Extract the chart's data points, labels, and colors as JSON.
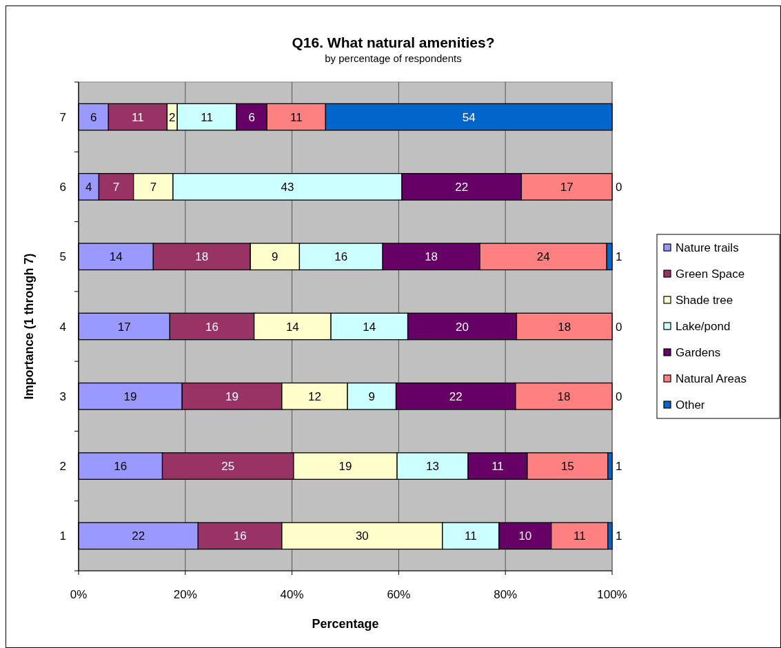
{
  "chart_data": {
    "type": "bar",
    "orientation": "horizontal",
    "stacked": true,
    "title": "Q16. What natural amenities?",
    "subtitle": "by percentage of respondents",
    "xlabel": "Percentage",
    "ylabel": "Importance (1 through 7)",
    "categories": [
      "7",
      "6",
      "5",
      "4",
      "3",
      "2",
      "1"
    ],
    "xlim": [
      0,
      100
    ],
    "xticks": [
      {
        "value": 0,
        "label": "0%"
      },
      {
        "value": 20,
        "label": "20%"
      },
      {
        "value": 40,
        "label": "40%"
      },
      {
        "value": 60,
        "label": "60%"
      },
      {
        "value": 80,
        "label": "80%"
      },
      {
        "value": 100,
        "label": "100%"
      }
    ],
    "grid": "x",
    "legend": "right",
    "series": [
      {
        "name": "Nature trails",
        "color": "#9999ff",
        "values": [
          5.6,
          3.8,
          14.0,
          17.1,
          19.4,
          15.7,
          22.4
        ],
        "value_labels": [
          "6",
          "4",
          "14",
          "17",
          "19",
          "16",
          "22"
        ]
      },
      {
        "name": "Green Space",
        "color": "#993366",
        "values": [
          11.0,
          6.5,
          18.2,
          15.8,
          18.7,
          24.6,
          15.7
        ],
        "value_labels": [
          "11",
          "7",
          "18",
          "16",
          "19",
          "25",
          "16"
        ]
      },
      {
        "name": "Shade tree",
        "color": "#ffffcc",
        "values": [
          1.9,
          7.4,
          9.2,
          14.4,
          12.3,
          19.4,
          30.1
        ],
        "value_labels": [
          "2",
          "7",
          "9",
          "14",
          "12",
          "19",
          "30"
        ]
      },
      {
        "name": "Lake/pond",
        "color": "#ccffff",
        "values": [
          11.1,
          42.9,
          15.6,
          14.4,
          9.1,
          13.3,
          10.6
        ],
        "value_labels": [
          "11",
          "43",
          "16",
          "14",
          "9",
          "13",
          "11"
        ]
      },
      {
        "name": "Gardens",
        "color": "#660066",
        "values": [
          5.7,
          22.4,
          18.2,
          20.4,
          22.4,
          11.1,
          9.8
        ],
        "value_labels": [
          "6",
          "22",
          "18",
          "20",
          "22",
          "11",
          "10"
        ]
      },
      {
        "name": "Natural Areas",
        "color": "#ff8080",
        "values": [
          11.0,
          17.0,
          23.8,
          17.9,
          18.1,
          15.1,
          10.6
        ],
        "value_labels": [
          "11",
          "17",
          "24",
          "18",
          "18",
          "15",
          "11"
        ]
      },
      {
        "name": "Other",
        "color": "#0066cc",
        "values": [
          53.7,
          0,
          1.0,
          0,
          0,
          0.8,
          0.8
        ],
        "value_labels": [
          "54",
          "0",
          "1",
          "0",
          "0",
          "1",
          "1"
        ]
      }
    ]
  }
}
